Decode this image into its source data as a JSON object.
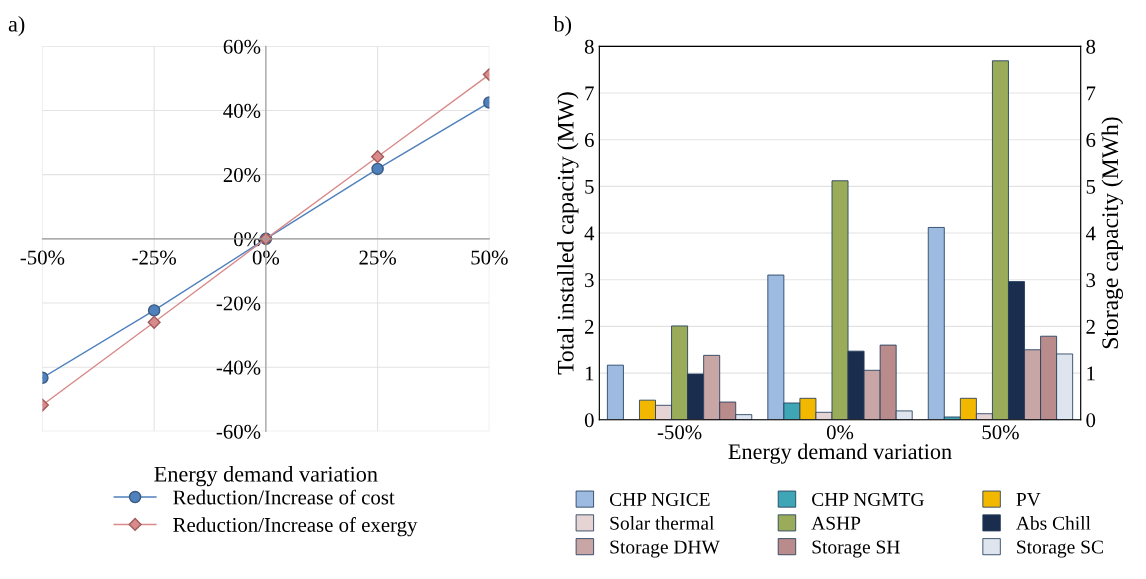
{
  "chart_data": [
    {
      "type": "line",
      "title": "a)",
      "xlabel": "Energy demand variation",
      "x": [
        -50,
        -25,
        0,
        25,
        50
      ],
      "xlim": [
        -50,
        50
      ],
      "xticks": [
        {
          "value": -50,
          "label": "-50%"
        },
        {
          "value": -25,
          "label": "-25%"
        },
        {
          "value": 0,
          "label": "0%"
        },
        {
          "value": 25,
          "label": "25%"
        },
        {
          "value": 50,
          "label": "50%"
        }
      ],
      "ylim": [
        -60,
        60
      ],
      "yticks": [
        {
          "value": -60,
          "label": "-60%"
        },
        {
          "value": -40,
          "label": "-40%"
        },
        {
          "value": -20,
          "label": "-20%"
        },
        {
          "value": 0,
          "label": "0%"
        },
        {
          "value": 20,
          "label": "20%"
        },
        {
          "value": 40,
          "label": "40%"
        },
        {
          "value": 60,
          "label": "60%"
        }
      ],
      "grid": true,
      "legend": "bottom",
      "series": [
        {
          "name": "Reduction/Increase of cost",
          "color": "#4f81bd",
          "marker": "circle",
          "values": [
            -43.3,
            -22.3,
            0,
            21.8,
            42.5
          ]
        },
        {
          "name": "Reduction/Increase of exergy",
          "color": "#d98a8a",
          "marker": "diamond",
          "values": [
            -51.8,
            -26.0,
            0,
            25.6,
            51.2
          ]
        }
      ]
    },
    {
      "type": "bar",
      "title": "b)",
      "xlabel": "Energy demand variation",
      "ylabel": "Total installed capacity (MW)",
      "y2label": "Storage capacity (MWh)",
      "categories": [
        "-50%",
        "0%",
        "50%"
      ],
      "ylim": [
        0,
        8
      ],
      "yticks": [
        0,
        1,
        2,
        3,
        4,
        5,
        6,
        7,
        8
      ],
      "y2lim": [
        0,
        8
      ],
      "y2ticks": [
        0,
        1,
        2,
        3,
        4,
        5,
        6,
        7,
        8
      ],
      "grid": "y",
      "legend": "bottom",
      "series": [
        {
          "name": "CHP NGICE",
          "color": "#9dbbe0",
          "values": [
            1.17,
            3.1,
            4.12
          ]
        },
        {
          "name": "CHP NGMTG",
          "color": "#3fa6b5",
          "values": [
            null,
            0.36,
            0.06
          ]
        },
        {
          "name": "PV",
          "color": "#f2b800",
          "values": [
            0.42,
            0.46,
            0.46
          ]
        },
        {
          "name": "Solar thermal",
          "color": "#e6d3d3",
          "values": [
            0.31,
            0.16,
            0.13
          ]
        },
        {
          "name": "ASHP",
          "color": "#9aab5a",
          "values": [
            2.01,
            5.12,
            7.69
          ]
        },
        {
          "name": "Abs Chill",
          "color": "#1b2d4f",
          "values": [
            0.98,
            1.47,
            2.96
          ]
        },
        {
          "name": "Storage DHW",
          "color": "#c9a6a6",
          "axis": "y2",
          "values": [
            1.38,
            1.06,
            1.5
          ]
        },
        {
          "name": "Storage SH",
          "color": "#b98b8b",
          "axis": "y2",
          "values": [
            0.38,
            1.6,
            1.79
          ]
        },
        {
          "name": "Storage SC",
          "color": "#dfe5ee",
          "axis": "y2",
          "values": [
            0.11,
            0.19,
            1.41
          ]
        }
      ]
    }
  ]
}
